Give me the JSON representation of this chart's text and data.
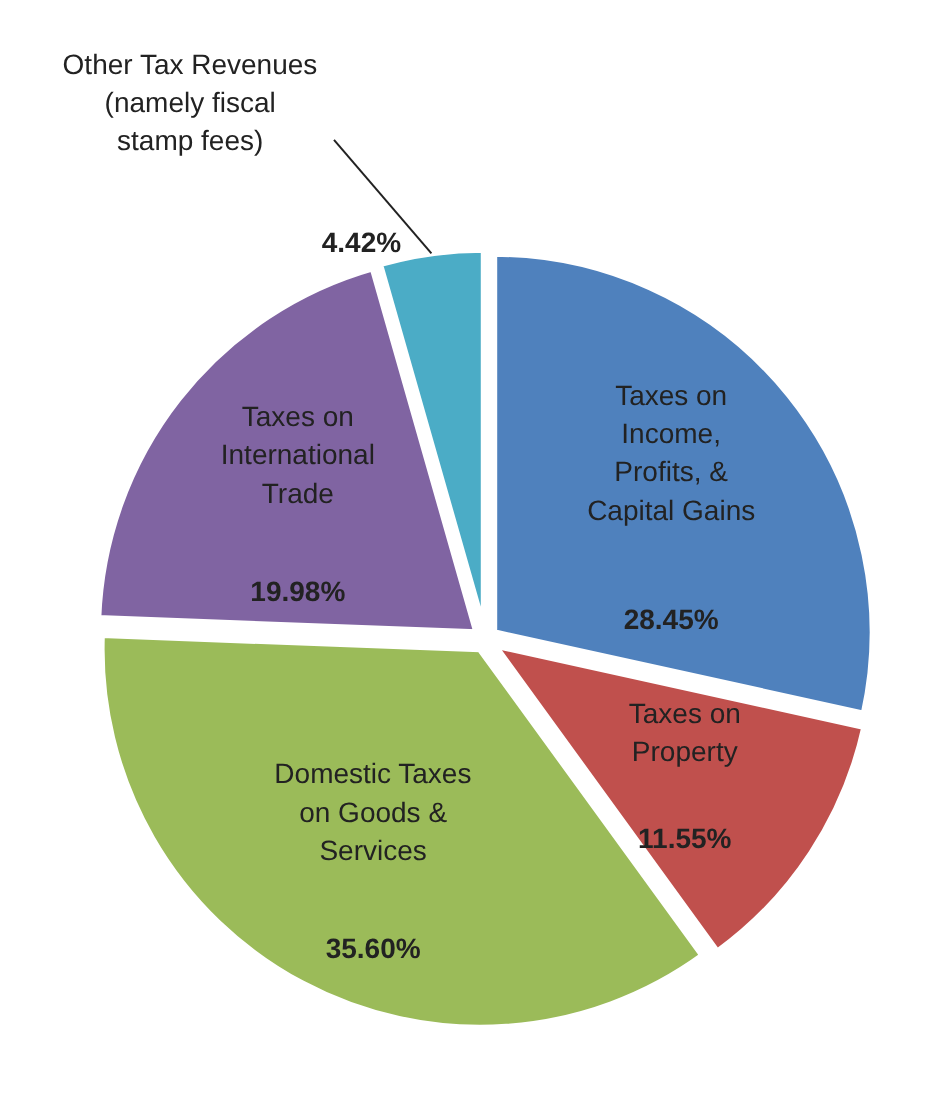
{
  "chart_data": {
    "type": "pie",
    "categories": [
      "Taxes on Income, Profits, & Capital Gains",
      "Taxes on Property",
      "Domestic Taxes on Goods & Services",
      "Taxes on International Trade",
      "Other Tax Revenues (namely fiscal stamp fees)"
    ],
    "values": [
      28.45,
      11.55,
      35.6,
      19.98,
      4.42
    ],
    "colors": [
      "#4f81bd",
      "#c0504d",
      "#9bbb59",
      "#8064a2",
      "#4bacc6"
    ],
    "value_labels": [
      "28.45%",
      "11.55%",
      "35.60%",
      "19.98%",
      "4.42%"
    ]
  }
}
